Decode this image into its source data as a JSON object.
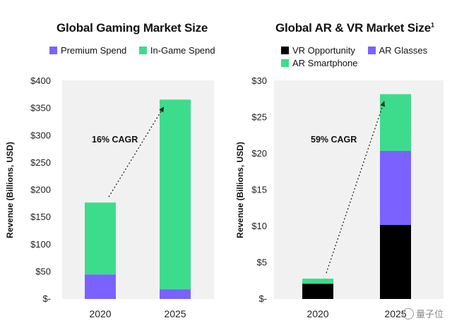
{
  "watermark": "量子位",
  "chart_data": [
    {
      "type": "bar",
      "stacked": true,
      "title": "Global Gaming Market Size",
      "categories": [
        "2020",
        "2025"
      ],
      "series": [
        {
          "name": "Premium Spend",
          "color": "#7b61ff",
          "values": [
            45,
            18
          ]
        },
        {
          "name": "In-Game Spend",
          "color": "#3ddc8c",
          "values": [
            132,
            348
          ]
        }
      ],
      "ylabel": "Revenue (Billions, USD)",
      "ylim": [
        0,
        400
      ],
      "yticks": [
        0,
        50,
        100,
        150,
        200,
        250,
        300,
        350,
        400
      ],
      "ytick_labels": [
        "$-",
        "$50",
        "$100",
        "$150",
        "$200",
        "$250",
        "$300",
        "$350",
        "$400"
      ],
      "annotation": "16% CAGR",
      "legend_position": "top"
    },
    {
      "type": "bar",
      "stacked": true,
      "title": "Global AR & VR Market Size",
      "title_sup": "1",
      "categories": [
        "2020",
        "2025"
      ],
      "series": [
        {
          "name": "VR Opportunity",
          "color": "#000000",
          "values": [
            2.1,
            10.2
          ]
        },
        {
          "name": "AR Glasses",
          "color": "#7b61ff",
          "values": [
            0,
            10.2
          ]
        },
        {
          "name": "AR Smartphone",
          "color": "#3ddc8c",
          "values": [
            0.7,
            7.8
          ]
        }
      ],
      "ylabel": "Revenue (Billions, USD)",
      "ylim": [
        0,
        30
      ],
      "yticks": [
        0,
        5,
        10,
        15,
        20,
        25,
        30
      ],
      "ytick_labels": [
        "$-",
        "$5",
        "$10",
        "$15",
        "$20",
        "$25",
        "$30"
      ],
      "annotation": "59% CAGR",
      "legend_position": "top"
    }
  ]
}
